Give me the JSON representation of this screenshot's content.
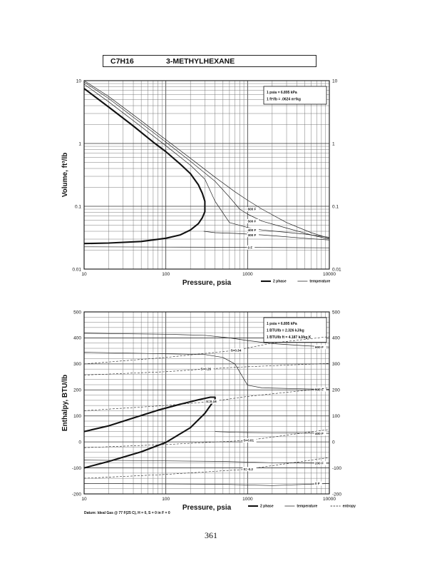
{
  "header": {
    "formula": "C7H16",
    "name": "3-METHYLHEXANE"
  },
  "page_number": "361",
  "chart_data": [
    {
      "type": "line",
      "title": "",
      "xlabel": "Pressure,  psia",
      "ylabel": "Volume,  ft^3/lb",
      "xscale": "log",
      "yscale": "log",
      "xlim": [
        10,
        10000
      ],
      "ylim": [
        0.01,
        10
      ],
      "xticks": [
        "10",
        "100",
        "1000",
        "10000"
      ],
      "yticks": [
        "0.01",
        "0.1",
        "1",
        "10"
      ],
      "yticks_right": [
        "0.01",
        "0.1",
        "1",
        "10"
      ],
      "grid": true,
      "conversion_box": [
        "1 psia = 6.895 kPa",
        "1 ft^3/lb = .0624 m^3/kg"
      ],
      "legend": [
        "2 phase",
        "temperature"
      ],
      "legend_position": "bottom-right",
      "series": [
        {
          "style": "2 phase",
          "points": [
            [
              10,
              7.5
            ],
            [
              20,
              3.8
            ],
            [
              40,
              1.9
            ],
            [
              70,
              1.05
            ],
            [
              100,
              0.74
            ],
            [
              150,
              0.47
            ],
            [
              200,
              0.33
            ],
            [
              250,
              0.22
            ],
            [
              280,
              0.16
            ],
            [
              300,
              0.12
            ],
            [
              300,
              0.082
            ],
            [
              280,
              0.066
            ],
            [
              250,
              0.053
            ],
            [
              200,
              0.042
            ],
            [
              150,
              0.035
            ],
            [
              100,
              0.031
            ],
            [
              50,
              0.0275
            ],
            [
              20,
              0.026
            ],
            [
              10,
              0.0255
            ]
          ]
        },
        {
          "label": "600 F",
          "points": [
            [
              10,
              10
            ],
            [
              20,
              5.6
            ],
            [
              50,
              2.3
            ],
            [
              100,
              1.15
            ],
            [
              200,
              0.58
            ],
            [
              400,
              0.29
            ],
            [
              700,
              0.17
            ],
            [
              1000,
              0.125
            ],
            [
              1500,
              0.09
            ]
          ]
        },
        {
          "label": "500 F",
          "points": [
            [
              10,
              9.5
            ],
            [
              20,
              5.2
            ],
            [
              50,
              2.1
            ],
            [
              100,
              1.05
            ],
            [
              200,
              0.52
            ],
            [
              400,
              0.25
            ],
            [
              600,
              0.14
            ],
            [
              800,
              0.09
            ],
            [
              1000,
              0.075
            ],
            [
              1500,
              0.058
            ]
          ]
        },
        {
          "label": "400 F",
          "points": [
            [
              10,
              8.8
            ],
            [
              20,
              4.6
            ],
            [
              50,
              1.85
            ],
            [
              100,
              0.92
            ],
            [
              200,
              0.45
            ],
            [
              300,
              0.27
            ],
            [
              400,
              0.12
            ],
            [
              600,
              0.055
            ],
            [
              1000,
              0.046
            ],
            [
              1500,
              0.042
            ]
          ]
        },
        {
          "label": "300 F",
          "points": [
            [
              290,
              0.04
            ],
            [
              400,
              0.038
            ],
            [
              700,
              0.037
            ],
            [
              1500,
              0.035
            ]
          ]
        },
        {
          "label": "0 F",
          "points": [
            [
              10,
              0.0226
            ],
            [
              100,
              0.0224
            ],
            [
              1000,
              0.0222
            ],
            [
              1500,
              0.0221
            ]
          ]
        },
        {
          "style": "temperature",
          "points": [
            [
              1500,
              0.09
            ],
            [
              3000,
              0.055
            ],
            [
              6000,
              0.038
            ],
            [
              10000,
              0.031
            ]
          ]
        },
        {
          "style": "temperature",
          "points": [
            [
              1500,
              0.058
            ],
            [
              3000,
              0.045
            ],
            [
              6000,
              0.035
            ],
            [
              10000,
              0.03
            ]
          ]
        },
        {
          "style": "temperature",
          "points": [
            [
              1500,
              0.042
            ],
            [
              5000,
              0.036
            ],
            [
              10000,
              0.032
            ]
          ]
        },
        {
          "style": "temperature",
          "points": [
            [
              1500,
              0.035
            ],
            [
              5000,
              0.031
            ],
            [
              10000,
              0.029
            ]
          ]
        },
        {
          "style": "temperature",
          "points": [
            [
              1500,
              0.0221
            ],
            [
              10000,
              0.0218
            ]
          ]
        }
      ]
    },
    {
      "type": "line",
      "title": "",
      "xlabel": "Pressure,  psia",
      "ylabel": "Enthalpy,  BTU/lb",
      "xscale": "log",
      "yscale": "linear",
      "xlim": [
        10,
        10000
      ],
      "ylim": [
        -200,
        500
      ],
      "xticks": [
        "10",
        "100",
        "1000",
        "10000"
      ],
      "yticks": [
        "-200",
        "-100",
        "0",
        "100",
        "200",
        "300",
        "400",
        "500"
      ],
      "yticks_right": [
        "-200",
        "-100",
        "0",
        "100",
        "200",
        "300",
        "400",
        "500"
      ],
      "grid": true,
      "conversion_box": [
        "1 psia = 6.895 kPa",
        "1 BTU/lb = 2.326 kJ/kg",
        "1 BTU/lb ft = 4.187 kJ/kg K"
      ],
      "footnote": "Datum: Ideal Gas @ 77 F(25 C),  H = 0,  S = 0 in F = 0",
      "legend": [
        "2 phase",
        "temperature",
        "entropy"
      ],
      "legend_position": "bottom-right",
      "series": [
        {
          "style": "2 phase",
          "points": [
            [
              10,
              40
            ],
            [
              20,
              62
            ],
            [
              40,
              92
            ],
            [
              80,
              122
            ],
            [
              150,
              145
            ],
            [
              250,
              162
            ],
            [
              350,
              172
            ],
            [
              400,
              172
            ],
            [
              400,
              165
            ],
            [
              300,
              110
            ],
            [
              200,
              55
            ],
            [
              100,
              -2
            ],
            [
              50,
              -38
            ],
            [
              20,
              -75
            ],
            [
              10,
              -100
            ]
          ]
        },
        {
          "label": "600 F",
          "style": "temperature",
          "points": [
            [
              10,
              418
            ],
            [
              100,
              414
            ],
            [
              300,
              410
            ],
            [
              600,
              400
            ],
            [
              1000,
              390
            ],
            [
              2000,
              378
            ],
            [
              5000,
              370
            ],
            [
              10000,
              365
            ]
          ]
        },
        {
          "label": "500 F",
          "style": "temperature",
          "points": [
            [
              10,
              345
            ],
            [
              300,
              336
            ],
            [
              500,
              325
            ],
            [
              700,
              300
            ],
            [
              1000,
              218
            ],
            [
              1500,
              208
            ],
            [
              5000,
              204
            ],
            [
              10000,
              202
            ]
          ]
        },
        {
          "label": "400 F",
          "style": "temperature",
          "points": [
            [
              400,
              40
            ],
            [
              700,
              37
            ],
            [
              1000,
              36
            ],
            [
              10000,
              33
            ]
          ]
        },
        {
          "label": "200 F",
          "style": "temperature",
          "points": [
            [
              10,
              -70
            ],
            [
              500,
              -75
            ],
            [
              2000,
              -80
            ],
            [
              10000,
              -82
            ]
          ]
        },
        {
          "label": "0 F",
          "style": "temperature",
          "points": [
            [
              10,
              -160
            ],
            [
              500,
              -163
            ],
            [
              2000,
              -168
            ],
            [
              10000,
              -160
            ]
          ]
        },
        {
          "label": "S=0.34",
          "style": "entropy",
          "points": [
            [
              10,
              300
            ],
            [
              100,
              325
            ],
            [
              700,
              352
            ],
            [
              2000,
              380
            ],
            [
              10000,
              405
            ]
          ]
        },
        {
          "label": "S=0.26",
          "style": "entropy",
          "points": [
            [
              10,
              257
            ],
            [
              100,
              270
            ],
            [
              300,
              280
            ],
            [
              700,
              287
            ],
            [
              2000,
              293
            ],
            [
              10000,
              302
            ]
          ]
        },
        {
          "label": "S=0.18",
          "style": "entropy",
          "points": [
            [
              10,
              120
            ],
            [
              100,
              140
            ],
            [
              350,
              155
            ],
            [
              1000,
              175
            ],
            [
              10000,
              208
            ]
          ]
        },
        {
          "label": "S=0.01",
          "style": "entropy",
          "points": [
            [
              10,
              -22
            ],
            [
              100,
              -10
            ],
            [
              1000,
              6
            ],
            [
              10000,
              48
            ]
          ]
        },
        {
          "label": "S=-0.2",
          "style": "entropy",
          "points": [
            [
              10,
              -140
            ],
            [
              100,
              -125
            ],
            [
              1000,
              -105
            ],
            [
              10000,
              -60
            ]
          ]
        }
      ]
    }
  ]
}
